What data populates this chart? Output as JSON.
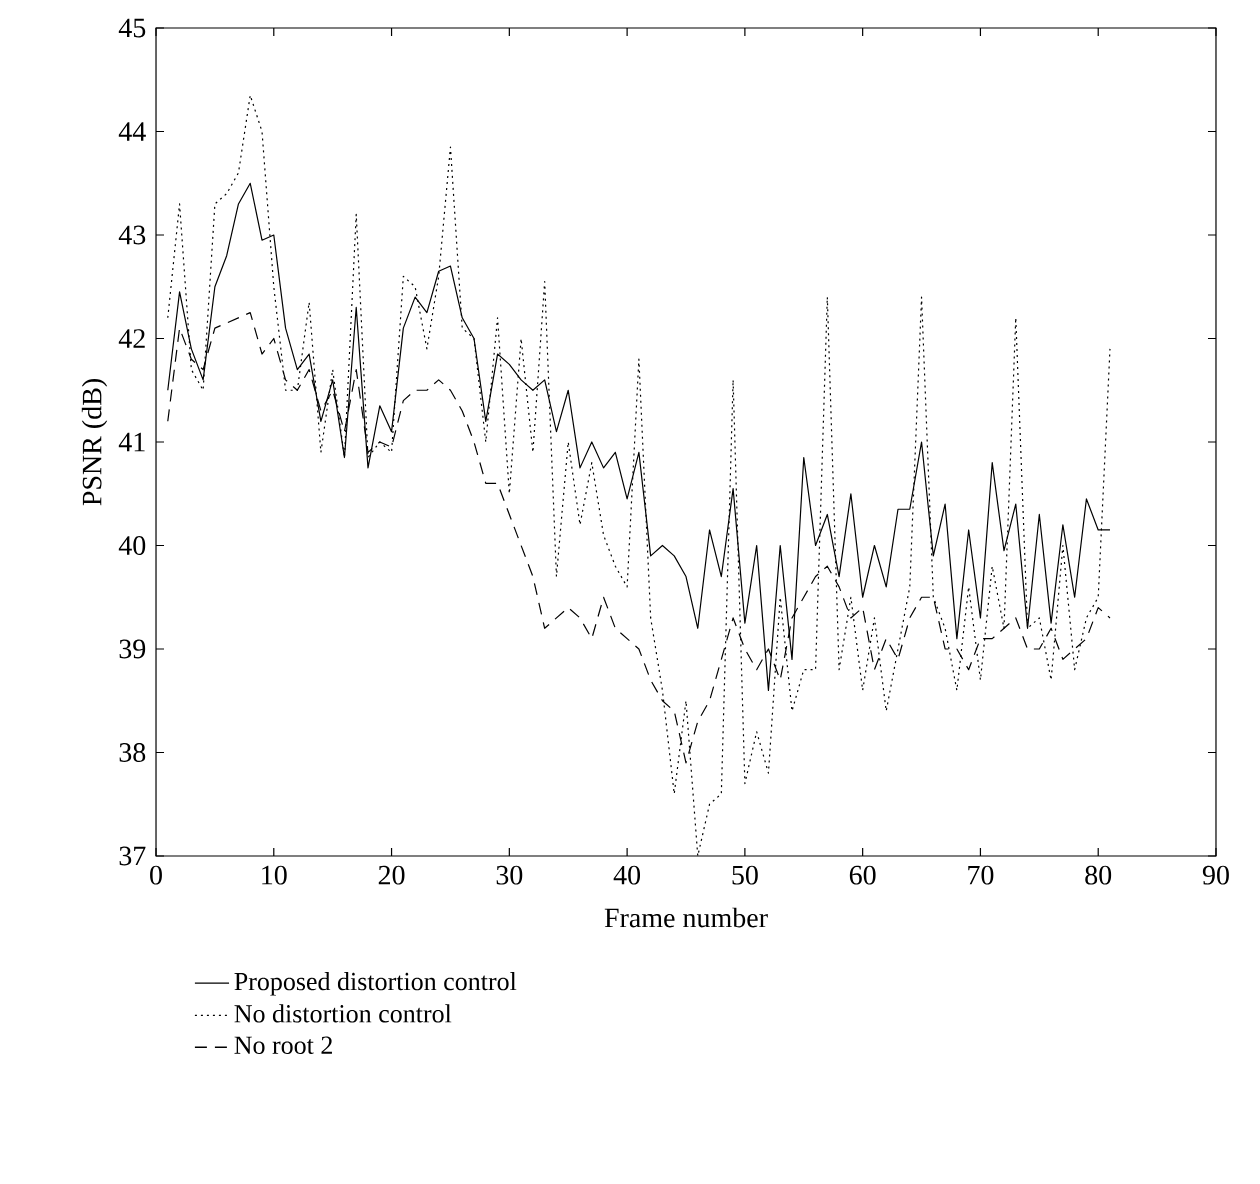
{
  "chart_data": {
    "type": "line",
    "xlabel": "Frame number",
    "ylabel": "PSNR (dB)",
    "xlim": [
      0,
      90
    ],
    "ylim": [
      37,
      45
    ],
    "xticks": [
      0,
      10,
      20,
      30,
      40,
      50,
      60,
      70,
      80,
      90
    ],
    "yticks": [
      37,
      38,
      39,
      40,
      41,
      42,
      43,
      44,
      45
    ],
    "legend": "bottom",
    "grid": false,
    "marker": "none",
    "x": [
      1,
      2,
      3,
      4,
      5,
      6,
      7,
      8,
      9,
      10,
      11,
      12,
      13,
      14,
      15,
      16,
      17,
      18,
      19,
      20,
      21,
      22,
      23,
      24,
      25,
      26,
      27,
      28,
      29,
      30,
      31,
      32,
      33,
      34,
      35,
      36,
      37,
      38,
      39,
      40,
      41,
      42,
      43,
      44,
      45,
      46,
      47,
      48,
      49,
      50,
      51,
      52,
      53,
      54,
      55,
      56,
      57,
      58,
      59,
      60,
      61,
      62,
      63,
      64,
      65,
      66,
      67,
      68,
      69,
      70,
      71,
      72,
      73,
      74,
      75,
      76,
      77,
      78,
      79,
      80,
      81
    ],
    "series": [
      {
        "name": "Proposed distortion control",
        "color": "#000000",
        "line_style": "solid",
        "values": [
          41.5,
          42.45,
          41.9,
          41.6,
          42.5,
          42.8,
          43.3,
          43.5,
          42.95,
          43.0,
          42.1,
          41.7,
          41.85,
          41.2,
          41.6,
          40.85,
          42.3,
          40.75,
          41.35,
          41.1,
          42.1,
          42.4,
          42.25,
          42.65,
          42.7,
          42.2,
          42.0,
          41.2,
          41.85,
          41.75,
          41.6,
          41.5,
          41.6,
          41.1,
          41.5,
          40.75,
          41.0,
          40.75,
          40.9,
          40.45,
          40.9,
          39.9,
          40.0,
          39.9,
          39.7,
          39.2,
          40.15,
          39.7,
          40.55,
          39.25,
          40.0,
          38.6,
          40.0,
          38.9,
          40.85,
          40.0,
          40.3,
          39.7,
          40.5,
          39.5,
          40.0,
          39.6,
          40.35,
          40.35,
          41.0,
          39.9,
          40.4,
          39.1,
          40.15,
          39.3,
          40.8,
          39.95,
          40.4,
          39.2,
          40.3,
          39.25,
          40.2,
          39.5,
          40.45,
          40.15,
          40.15
        ]
      },
      {
        "name": "No distortion control",
        "color": "#000000",
        "line_style": "dotted",
        "values": [
          42.2,
          43.3,
          41.7,
          41.5,
          43.3,
          43.4,
          43.6,
          44.35,
          44.0,
          42.5,
          41.5,
          41.5,
          42.35,
          40.9,
          41.7,
          40.85,
          43.2,
          40.85,
          41.0,
          40.9,
          42.6,
          42.5,
          41.9,
          42.6,
          43.85,
          42.1,
          42.0,
          41.0,
          42.2,
          40.5,
          42.0,
          40.9,
          42.55,
          39.7,
          41.0,
          40.2,
          40.8,
          40.1,
          39.8,
          39.6,
          41.8,
          39.3,
          38.6,
          37.6,
          38.5,
          37.0,
          37.5,
          37.6,
          41.6,
          37.7,
          38.2,
          37.8,
          39.5,
          38.4,
          38.8,
          38.8,
          42.4,
          38.8,
          39.5,
          38.6,
          39.3,
          38.4,
          39.0,
          39.6,
          42.4,
          39.5,
          39.2,
          38.6,
          39.6,
          38.7,
          39.8,
          39.2,
          42.2,
          39.2,
          39.3,
          38.7,
          40.0,
          38.8,
          39.3,
          39.5,
          41.9
        ]
      },
      {
        "name": "No root 2",
        "color": "#000000",
        "line_style": "dashed",
        "values": [
          41.2,
          42.1,
          41.8,
          41.7,
          42.1,
          42.15,
          42.2,
          42.25,
          41.85,
          42.0,
          41.6,
          41.5,
          41.7,
          41.3,
          41.5,
          41.1,
          41.7,
          40.9,
          41.0,
          40.95,
          41.4,
          41.5,
          41.5,
          41.6,
          41.5,
          41.3,
          41.0,
          40.6,
          40.6,
          40.3,
          40.0,
          39.7,
          39.2,
          39.3,
          39.4,
          39.3,
          39.1,
          39.5,
          39.2,
          39.1,
          39.0,
          38.7,
          38.5,
          38.4,
          37.9,
          38.3,
          38.5,
          38.9,
          39.3,
          39.0,
          38.8,
          39.0,
          38.7,
          39.3,
          39.5,
          39.7,
          39.8,
          39.6,
          39.3,
          39.4,
          38.8,
          39.1,
          38.9,
          39.3,
          39.5,
          39.5,
          39.0,
          39.0,
          38.8,
          39.1,
          39.1,
          39.2,
          39.3,
          39.0,
          39.0,
          39.2,
          38.9,
          39.0,
          39.1,
          39.4,
          39.3
        ]
      }
    ]
  }
}
